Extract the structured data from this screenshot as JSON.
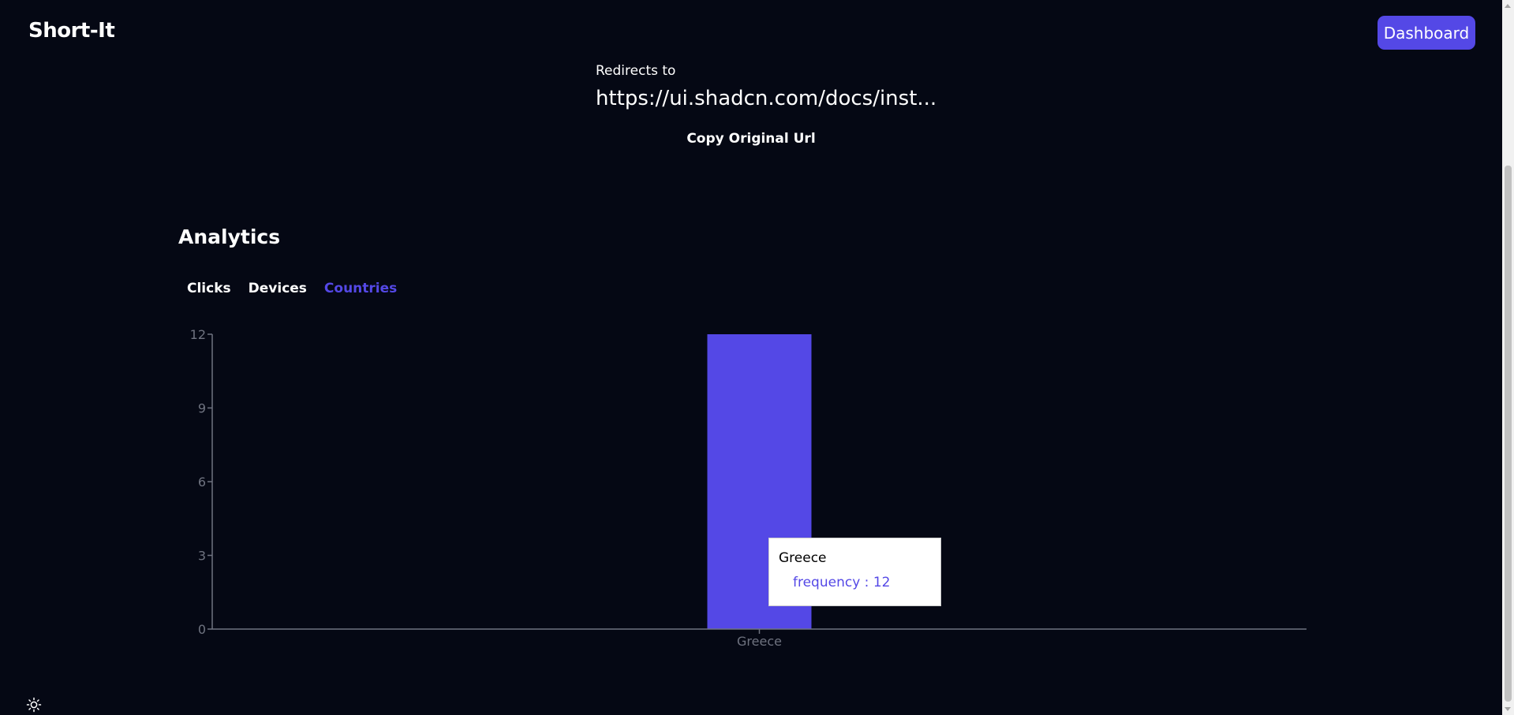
{
  "header": {
    "brand": "Short-It",
    "dashboard_label": "Dashboard"
  },
  "link": {
    "redirect_label": "Redirects to",
    "original_url": "https://ui.shadcn.com/docs/inst...",
    "copy_label": "Copy Original Url"
  },
  "analytics": {
    "title": "Analytics",
    "tabs": [
      {
        "label": "Clicks",
        "active": false
      },
      {
        "label": "Devices",
        "active": false
      },
      {
        "label": "Countries",
        "active": true
      }
    ]
  },
  "chart_data": {
    "type": "bar",
    "categories": [
      "Greece"
    ],
    "series": [
      {
        "name": "frequency",
        "values": [
          12
        ]
      }
    ],
    "ylim": [
      0,
      12
    ],
    "yticks": [
      0,
      3,
      6,
      9,
      12
    ],
    "bar_color": "#5448e6",
    "grid": false
  },
  "tooltip": {
    "title": "Greece",
    "series_name": "frequency",
    "separator": " : ",
    "value": "12"
  },
  "colors": {
    "background": "#050814",
    "accent": "#5448e6",
    "axis": "#6f7380"
  },
  "icons": {
    "theme_toggle": "sun-icon"
  }
}
